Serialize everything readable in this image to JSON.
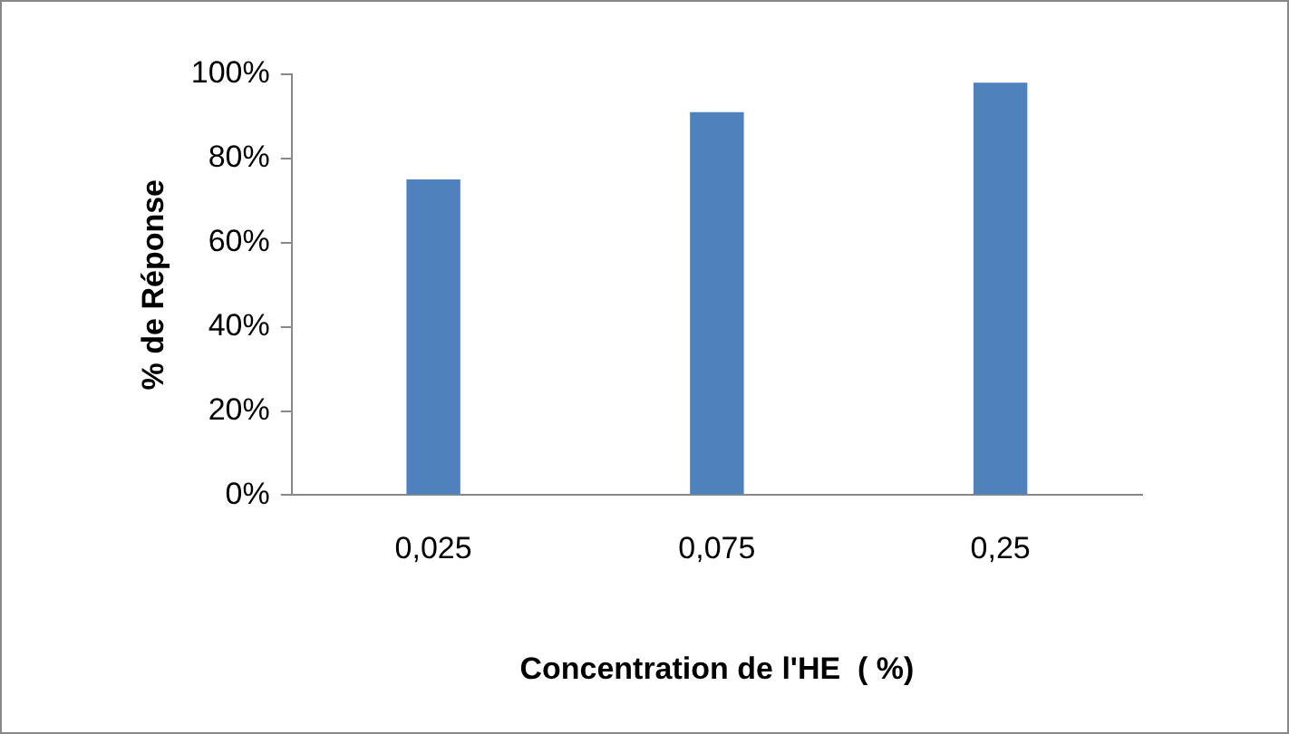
{
  "chart_data": {
    "type": "bar",
    "xlabel": "Concentration de l'HE  ( %)",
    "ylabel": "% de Réponse",
    "categories": [
      "0,025",
      "0,075",
      "0,25"
    ],
    "values": [
      75,
      91,
      98
    ],
    "color": "#4f81bd",
    "ylim": [
      0,
      100
    ],
    "yticks": [
      {
        "value": 0,
        "label": "0%"
      },
      {
        "value": 20,
        "label": "20%"
      },
      {
        "value": 40,
        "label": "40%"
      },
      {
        "value": 60,
        "label": "60%"
      },
      {
        "value": 80,
        "label": "80%"
      },
      {
        "value": 100,
        "label": "100%"
      }
    ],
    "grid": false,
    "legend": false
  }
}
